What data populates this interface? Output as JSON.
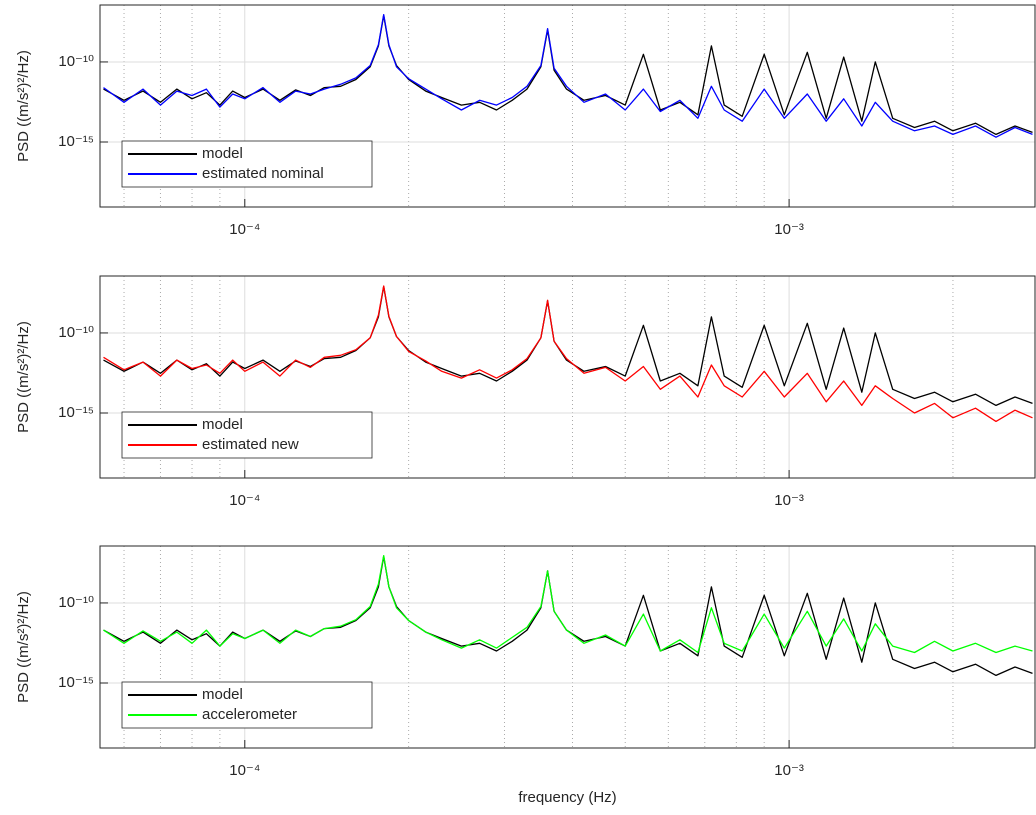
{
  "chart_data": [
    {
      "type": "line",
      "ylabel": "PSD ((m/s²)²/Hz)",
      "xscale": "log",
      "yscale": "log",
      "grid": true,
      "legend": "lower left",
      "xlim": [
        5.42e-05,
        0.00283
      ],
      "ylim": [
        8.7e-20,
        3.6e-07
      ],
      "xticks": [
        {
          "value": 0.0001,
          "label": "10⁻⁴"
        },
        {
          "value": 0.001,
          "label": "10⁻³"
        }
      ],
      "yticks": [
        {
          "value": 1e-15,
          "label": "10⁻¹⁵"
        },
        {
          "value": 1e-10,
          "label": "10⁻¹⁰"
        }
      ],
      "x": [
        5.5e-05,
        6e-05,
        6.5e-05,
        7e-05,
        7.5e-05,
        8e-05,
        8.5e-05,
        9e-05,
        9.5e-05,
        0.0001,
        0.000108,
        0.000116,
        0.000124,
        0.000132,
        0.00014,
        0.00015,
        0.00016,
        0.00017,
        0.000176,
        0.00018,
        0.000184,
        0.00019,
        0.0002,
        0.000215,
        0.00023,
        0.00025,
        0.00027,
        0.00029,
        0.00031,
        0.00033,
        0.00035,
        0.00036,
        0.00037,
        0.00039,
        0.00042,
        0.00046,
        0.0005,
        0.00054,
        0.00058,
        0.00063,
        0.00068,
        0.00072,
        0.00076,
        0.00082,
        0.0009,
        0.00098,
        0.00108,
        0.00117,
        0.00126,
        0.00136,
        0.00144,
        0.00155,
        0.0017,
        0.00185,
        0.002,
        0.0022,
        0.0024,
        0.0026,
        0.0028
      ],
      "series": [
        {
          "name": "model",
          "color": "#000000",
          "values": [
            2e-12,
            4e-13,
            1.5e-12,
            3e-13,
            2e-12,
            5e-13,
            1.2e-12,
            2e-13,
            1.5e-12,
            6e-13,
            2e-12,
            4e-13,
            1.8e-12,
            8e-13,
            2.5e-12,
            3e-12,
            8e-12,
            5e-11,
            1e-09,
            8e-08,
            1e-09,
            6e-11,
            8e-12,
            1.5e-12,
            6e-13,
            2e-13,
            3e-13,
            1e-13,
            4e-13,
            2e-12,
            5e-11,
            1e-08,
            3e-11,
            2e-12,
            4e-13,
            8e-13,
            2e-13,
            3e-10,
            1e-13,
            3e-13,
            5e-14,
            1e-09,
            2e-13,
            4e-14,
            3e-10,
            5e-14,
            4e-10,
            3e-14,
            2e-10,
            2e-14,
            1e-10,
            3e-14,
            8e-15,
            2e-14,
            5e-15,
            1.5e-14,
            3e-15,
            1e-14,
            4e-15
          ]
        },
        {
          "name": "estimated nominal",
          "color": "#0000ff",
          "values": [
            2.5e-12,
            3e-13,
            2e-12,
            2e-13,
            1.5e-12,
            8e-13,
            2e-12,
            1.5e-13,
            1e-12,
            5e-13,
            2.5e-12,
            3e-13,
            1.5e-12,
            1e-12,
            2e-12,
            4e-12,
            1e-11,
            6e-11,
            1.2e-09,
            9e-08,
            1.2e-09,
            5e-11,
            9e-12,
            2e-12,
            5e-13,
            1e-13,
            4e-13,
            2e-13,
            6e-13,
            3e-12,
            6e-11,
            1.2e-08,
            4e-11,
            3e-12,
            3e-13,
            1e-12,
            1e-13,
            2e-12,
            8e-14,
            4e-13,
            3e-14,
            3e-12,
            1e-13,
            2e-14,
            2e-12,
            3e-14,
            1e-12,
            2e-14,
            5e-13,
            1e-14,
            3e-13,
            2e-14,
            5e-15,
            1e-14,
            3e-15,
            1e-14,
            2e-15,
            8e-15,
            3e-15
          ]
        }
      ]
    },
    {
      "type": "line",
      "ylabel": "PSD ((m/s²)²/Hz)",
      "xscale": "log",
      "yscale": "log",
      "grid": true,
      "legend": "lower left",
      "xlim": [
        5.42e-05,
        0.00283
      ],
      "ylim": [
        8.7e-20,
        3.6e-07
      ],
      "xticks": [
        {
          "value": 0.0001,
          "label": "10⁻⁴"
        },
        {
          "value": 0.001,
          "label": "10⁻³"
        }
      ],
      "yticks": [
        {
          "value": 1e-15,
          "label": "10⁻¹⁵"
        },
        {
          "value": 1e-10,
          "label": "10⁻¹⁰"
        }
      ],
      "x": [
        5.5e-05,
        6e-05,
        6.5e-05,
        7e-05,
        7.5e-05,
        8e-05,
        8.5e-05,
        9e-05,
        9.5e-05,
        0.0001,
        0.000108,
        0.000116,
        0.000124,
        0.000132,
        0.00014,
        0.00015,
        0.00016,
        0.00017,
        0.000176,
        0.00018,
        0.000184,
        0.00019,
        0.0002,
        0.000215,
        0.00023,
        0.00025,
        0.00027,
        0.00029,
        0.00031,
        0.00033,
        0.00035,
        0.00036,
        0.00037,
        0.00039,
        0.00042,
        0.00046,
        0.0005,
        0.00054,
        0.00058,
        0.00063,
        0.00068,
        0.00072,
        0.00076,
        0.00082,
        0.0009,
        0.00098,
        0.00108,
        0.00117,
        0.00126,
        0.00136,
        0.00144,
        0.00155,
        0.0017,
        0.00185,
        0.002,
        0.0022,
        0.0024,
        0.0026,
        0.0028
      ],
      "series": [
        {
          "name": "model",
          "color": "#000000",
          "values": [
            2e-12,
            4e-13,
            1.5e-12,
            3e-13,
            2e-12,
            5e-13,
            1.2e-12,
            2e-13,
            1.5e-12,
            6e-13,
            2e-12,
            4e-13,
            1.8e-12,
            8e-13,
            2.5e-12,
            3e-12,
            8e-12,
            5e-11,
            1e-09,
            8e-08,
            1e-09,
            6e-11,
            8e-12,
            1.5e-12,
            6e-13,
            2e-13,
            3e-13,
            1e-13,
            4e-13,
            2e-12,
            5e-11,
            1e-08,
            3e-11,
            2e-12,
            4e-13,
            8e-13,
            2e-13,
            3e-10,
            1e-13,
            3e-13,
            5e-14,
            1e-09,
            2e-13,
            4e-14,
            3e-10,
            5e-14,
            4e-10,
            3e-14,
            2e-10,
            2e-14,
            1e-10,
            3e-14,
            8e-15,
            2e-14,
            5e-15,
            1.5e-14,
            3e-15,
            1e-14,
            4e-15
          ]
        },
        {
          "name": "estimated new",
          "color": "#ff0000",
          "values": [
            3e-12,
            5e-13,
            1.5e-12,
            2e-13,
            2e-12,
            6e-13,
            1e-12,
            3e-13,
            2e-12,
            4e-13,
            1.5e-12,
            2e-13,
            2e-12,
            7e-13,
            3e-12,
            4e-12,
            9e-12,
            5e-11,
            1.3e-09,
            8.5e-08,
            1.1e-09,
            6e-11,
            7e-12,
            1.8e-12,
            4e-13,
            1.5e-13,
            5e-13,
            1.5e-13,
            5e-13,
            2.5e-12,
            5e-11,
            1.1e-08,
            3e-11,
            2.5e-12,
            3e-13,
            7e-13,
            1e-13,
            8e-13,
            3e-14,
            2e-13,
            1e-14,
            1e-12,
            5e-14,
            1e-14,
            4e-13,
            1e-14,
            3e-13,
            5e-15,
            1e-13,
            3e-15,
            5e-14,
            8e-15,
            1e-15,
            4e-15,
            5e-16,
            2e-15,
            3e-16,
            1.5e-15,
            5e-16
          ]
        }
      ]
    },
    {
      "type": "line",
      "ylabel": "PSD ((m/s²)²/Hz)",
      "xlabel": "frequency (Hz)",
      "xscale": "log",
      "yscale": "log",
      "grid": true,
      "legend": "lower left",
      "xlim": [
        5.42e-05,
        0.00283
      ],
      "ylim": [
        8.7e-20,
        3.6e-07
      ],
      "xticks": [
        {
          "value": 0.0001,
          "label": "10⁻⁴"
        },
        {
          "value": 0.001,
          "label": "10⁻³"
        }
      ],
      "yticks": [
        {
          "value": 1e-15,
          "label": "10⁻¹⁵"
        },
        {
          "value": 1e-10,
          "label": "10⁻¹⁰"
        }
      ],
      "x": [
        5.5e-05,
        6e-05,
        6.5e-05,
        7e-05,
        7.5e-05,
        8e-05,
        8.5e-05,
        9e-05,
        9.5e-05,
        0.0001,
        0.000108,
        0.000116,
        0.000124,
        0.000132,
        0.00014,
        0.00015,
        0.00016,
        0.00017,
        0.000176,
        0.00018,
        0.000184,
        0.00019,
        0.0002,
        0.000215,
        0.00023,
        0.00025,
        0.00027,
        0.00029,
        0.00031,
        0.00033,
        0.00035,
        0.00036,
        0.00037,
        0.00039,
        0.00042,
        0.00046,
        0.0005,
        0.00054,
        0.00058,
        0.00063,
        0.00068,
        0.00072,
        0.00076,
        0.00082,
        0.0009,
        0.00098,
        0.00108,
        0.00117,
        0.00126,
        0.00136,
        0.00144,
        0.00155,
        0.0017,
        0.00185,
        0.002,
        0.0022,
        0.0024,
        0.0026,
        0.0028
      ],
      "series": [
        {
          "name": "model",
          "color": "#000000",
          "values": [
            2e-12,
            4e-13,
            1.5e-12,
            3e-13,
            2e-12,
            5e-13,
            1.2e-12,
            2e-13,
            1.5e-12,
            6e-13,
            2e-12,
            4e-13,
            1.8e-12,
            8e-13,
            2.5e-12,
            3e-12,
            8e-12,
            5e-11,
            1e-09,
            8e-08,
            1e-09,
            6e-11,
            8e-12,
            1.5e-12,
            6e-13,
            2e-13,
            3e-13,
            1e-13,
            4e-13,
            2e-12,
            5e-11,
            1e-08,
            3e-11,
            2e-12,
            4e-13,
            8e-13,
            2e-13,
            3e-10,
            1e-13,
            3e-13,
            5e-14,
            1e-09,
            2e-13,
            4e-14,
            3e-10,
            5e-14,
            4e-10,
            3e-14,
            2e-10,
            2e-14,
            1e-10,
            3e-14,
            8e-15,
            2e-14,
            5e-15,
            1.5e-14,
            3e-15,
            1e-14,
            4e-15
          ]
        },
        {
          "name": "accelerometer",
          "color": "#00ff00",
          "values": [
            2e-12,
            3e-13,
            1.8e-12,
            4e-13,
            1.5e-12,
            3e-13,
            2e-12,
            2e-13,
            1.2e-12,
            6e-13,
            2e-12,
            3e-13,
            2e-12,
            8e-13,
            2.5e-12,
            3.5e-12,
            9e-12,
            6e-11,
            1.5e-09,
            9e-08,
            1e-09,
            5e-11,
            8e-12,
            1.5e-12,
            5e-13,
            1.5e-13,
            5e-13,
            1.5e-13,
            7e-13,
            3e-12,
            6e-11,
            1e-08,
            3e-11,
            2e-12,
            3e-13,
            1e-12,
            2e-13,
            2e-11,
            1e-13,
            5e-13,
            8e-14,
            5e-11,
            3e-13,
            1e-13,
            2e-11,
            1.5e-13,
            3e-11,
            2e-13,
            1e-11,
            1e-13,
            5e-12,
            2e-13,
            8e-14,
            4e-13,
            1e-13,
            3e-13,
            8e-14,
            2e-13,
            1e-13
          ]
        }
      ]
    }
  ]
}
